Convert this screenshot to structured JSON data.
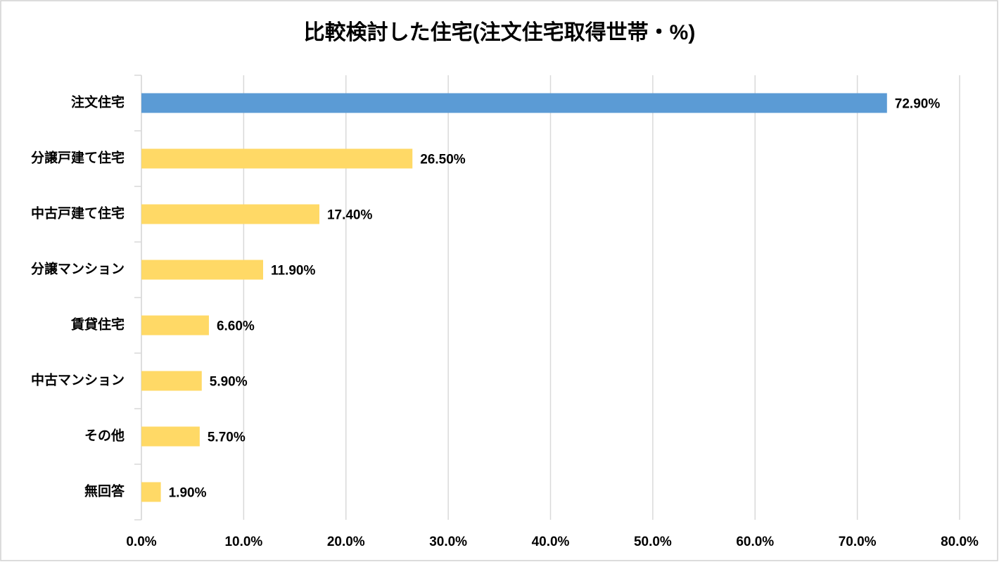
{
  "chart_data": {
    "type": "bar",
    "orientation": "horizontal",
    "title": "比較検討した住宅(注文住宅取得世帯・%)",
    "categories": [
      "注文住宅",
      "分譲戸建て住宅",
      "中古戸建て住宅",
      "分譲マンション",
      "賃貸住宅",
      "中古マンション",
      "その他",
      "無回答"
    ],
    "values": [
      72.9,
      26.5,
      17.4,
      11.9,
      6.6,
      5.9,
      5.7,
      1.9
    ],
    "value_labels": [
      "72.90%",
      "26.50%",
      "17.40%",
      "11.90%",
      "6.60%",
      "5.90%",
      "5.70%",
      "1.90%"
    ],
    "colors": [
      "#5b9bd5",
      "#ffd966",
      "#ffd966",
      "#ffd966",
      "#ffd966",
      "#ffd966",
      "#ffd966",
      "#ffd966"
    ],
    "xlim": [
      0,
      80
    ],
    "xticks": [
      {
        "value": 0,
        "label": "0.0%"
      },
      {
        "value": 10,
        "label": "10.0%"
      },
      {
        "value": 20,
        "label": "20.0%"
      },
      {
        "value": 30,
        "label": "30.0%"
      },
      {
        "value": 40,
        "label": "40.0%"
      },
      {
        "value": 50,
        "label": "50.0%"
      },
      {
        "value": 60,
        "label": "60.0%"
      },
      {
        "value": 70,
        "label": "70.0%"
      },
      {
        "value": 80,
        "label": "80.0%"
      }
    ],
    "grid": true
  }
}
